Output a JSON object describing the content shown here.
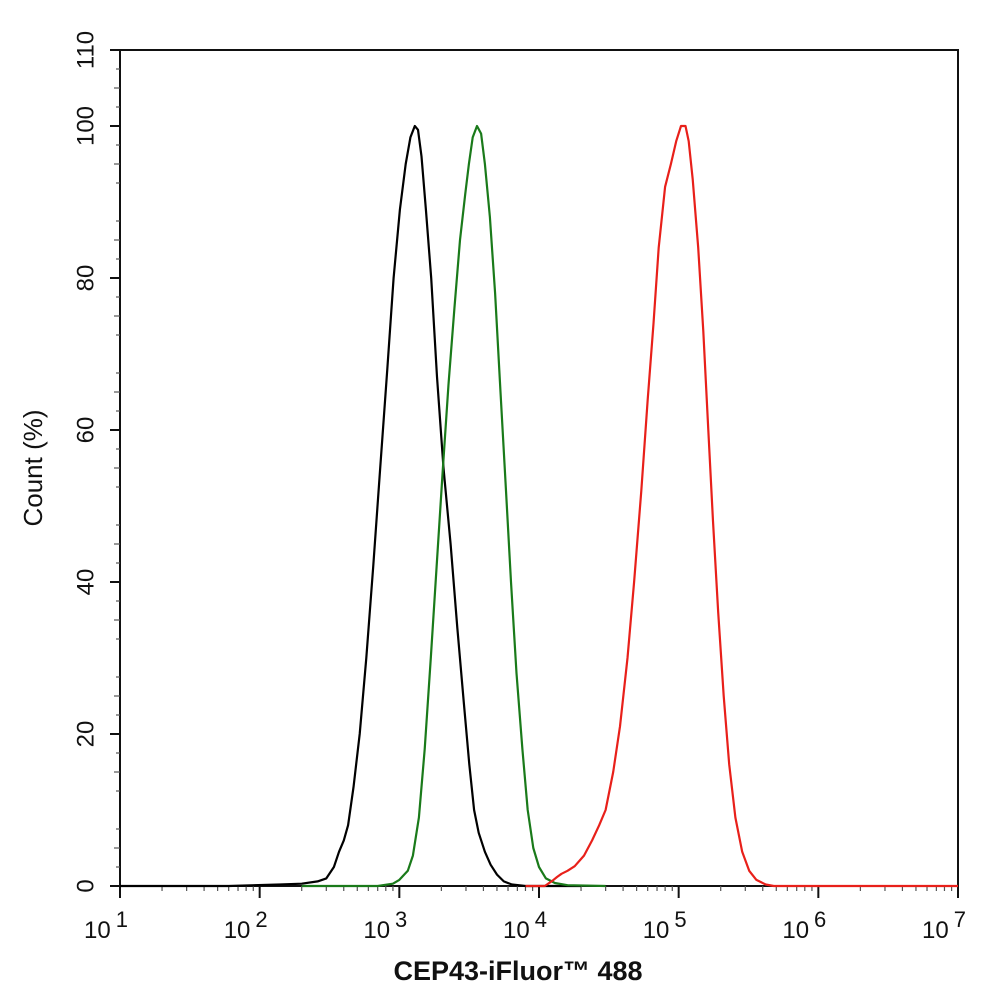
{
  "chart_data": {
    "type": "line",
    "xlabel": "CEP43-iFluor™ 488",
    "ylabel": "Count  (%)",
    "xscale": "log",
    "xlim": [
      10,
      10000000
    ],
    "ylim": [
      0,
      110
    ],
    "grid": false,
    "legend": "none",
    "x_ticks": [
      {
        "base": "10",
        "exp": "1",
        "value": 10
      },
      {
        "base": "10",
        "exp": "2",
        "value": 100
      },
      {
        "base": "10",
        "exp": "3",
        "value": 1000
      },
      {
        "base": "10",
        "exp": "4",
        "value": 10000
      },
      {
        "base": "10",
        "exp": "5",
        "value": 100000
      },
      {
        "base": "10",
        "exp": "6",
        "value": 1000000
      },
      {
        "base": "10",
        "exp": "7",
        "value": 10000000
      }
    ],
    "y_ticks": [
      "0",
      "20",
      "40",
      "60",
      "80",
      "100",
      "110"
    ],
    "series": [
      {
        "color": "#000000",
        "points": [
          [
            10,
            0
          ],
          [
            60,
            0
          ],
          [
            140,
            0.2
          ],
          [
            200,
            0.3
          ],
          [
            260,
            0.6
          ],
          [
            300,
            1.0
          ],
          [
            340,
            2.5
          ],
          [
            370,
            4.5
          ],
          [
            400,
            6.0
          ],
          [
            430,
            8.0
          ],
          [
            470,
            13
          ],
          [
            520,
            20
          ],
          [
            580,
            30
          ],
          [
            650,
            42
          ],
          [
            730,
            55
          ],
          [
            820,
            68
          ],
          [
            910,
            80
          ],
          [
            1010,
            89
          ],
          [
            1110,
            95
          ],
          [
            1200,
            98.5
          ],
          [
            1290,
            100
          ],
          [
            1360,
            99.5
          ],
          [
            1440,
            96
          ],
          [
            1550,
            89
          ],
          [
            1690,
            80
          ],
          [
            1860,
            67
          ],
          [
            2070,
            55
          ],
          [
            2330,
            45
          ],
          [
            2600,
            34
          ],
          [
            2900,
            24
          ],
          [
            3170,
            16
          ],
          [
            3430,
            10
          ],
          [
            3700,
            7
          ],
          [
            4100,
            4.5
          ],
          [
            4500,
            2.8
          ],
          [
            5000,
            1.5
          ],
          [
            5600,
            0.6
          ],
          [
            6400,
            0.2
          ],
          [
            8000,
            0
          ],
          [
            20000,
            0
          ]
        ]
      },
      {
        "color": "#1a7a1a",
        "points": [
          [
            200,
            0
          ],
          [
            700,
            0
          ],
          [
            900,
            0.3
          ],
          [
            1000,
            0.8
          ],
          [
            1150,
            2
          ],
          [
            1250,
            4
          ],
          [
            1380,
            9
          ],
          [
            1520,
            18
          ],
          [
            1680,
            30
          ],
          [
            1850,
            42
          ],
          [
            2050,
            55
          ],
          [
            2250,
            66
          ],
          [
            2480,
            76
          ],
          [
            2720,
            85
          ],
          [
            2960,
            91
          ],
          [
            3150,
            95
          ],
          [
            3350,
            98.5
          ],
          [
            3600,
            100
          ],
          [
            3850,
            99
          ],
          [
            4100,
            95
          ],
          [
            4450,
            88
          ],
          [
            4850,
            78
          ],
          [
            5300,
            65
          ],
          [
            5800,
            52
          ],
          [
            6300,
            40
          ],
          [
            6900,
            28
          ],
          [
            7600,
            18
          ],
          [
            8300,
            10
          ],
          [
            9100,
            5
          ],
          [
            10000,
            2.5
          ],
          [
            11200,
            1
          ],
          [
            13000,
            0.4
          ],
          [
            16000,
            0.1
          ],
          [
            30000,
            0
          ]
        ]
      },
      {
        "color": "#e8201a",
        "points": [
          [
            8000,
            0
          ],
          [
            11000,
            0
          ],
          [
            12500,
            0.7
          ],
          [
            13500,
            1.2
          ],
          [
            14500,
            1.6
          ],
          [
            16000,
            2.0
          ],
          [
            18000,
            2.6
          ],
          [
            21000,
            4
          ],
          [
            24000,
            6
          ],
          [
            27000,
            8
          ],
          [
            30000,
            10
          ],
          [
            34000,
            15
          ],
          [
            38000,
            21
          ],
          [
            43000,
            30
          ],
          [
            48000,
            40
          ],
          [
            54000,
            52
          ],
          [
            60000,
            64
          ],
          [
            66000,
            74
          ],
          [
            72000,
            84
          ],
          [
            80000,
            92
          ],
          [
            88000,
            95
          ],
          [
            96000,
            98
          ],
          [
            104000,
            100
          ],
          [
            112000,
            100
          ],
          [
            118000,
            98
          ],
          [
            126000,
            93
          ],
          [
            138000,
            84
          ],
          [
            150000,
            73
          ],
          [
            163000,
            60
          ],
          [
            176000,
            48
          ],
          [
            192000,
            36
          ],
          [
            210000,
            25
          ],
          [
            230000,
            16
          ],
          [
            255000,
            9
          ],
          [
            285000,
            4.5
          ],
          [
            320000,
            2
          ],
          [
            360000,
            0.8
          ],
          [
            420000,
            0.2
          ],
          [
            480000,
            0
          ],
          [
            10000000,
            0
          ]
        ]
      }
    ]
  }
}
